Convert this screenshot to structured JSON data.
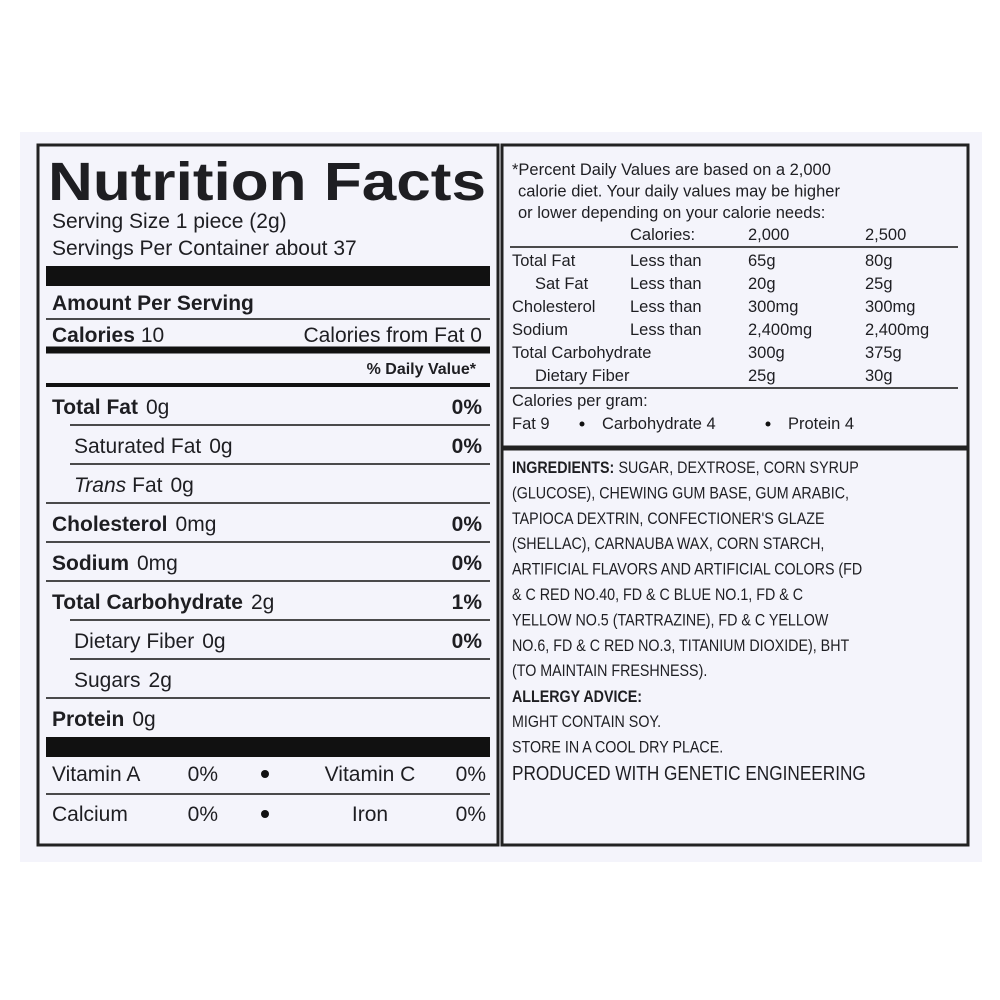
{
  "label": {
    "title": "Nutrition Facts",
    "serving_size": "Serving Size 1 piece (2g)",
    "servings_per_container": "Servings Per Container about 37",
    "amount_per_serving": "Amount Per Serving",
    "calories": {
      "label": "Calories",
      "amount": "10",
      "from_fat": "Calories from Fat 0"
    },
    "daily_value_header": "% Daily Value*",
    "nutrients": [
      {
        "name": "Total Fat",
        "amount": "0g",
        "dv": "0%",
        "bold": true,
        "indent": false
      },
      {
        "name": "Saturated Fat",
        "amount": "0g",
        "dv": "0%",
        "bold": false,
        "indent": true
      },
      {
        "name_italic": "Trans",
        "name": "Fat",
        "amount": "0g",
        "bold": false,
        "indent": true
      },
      {
        "name": "Cholesterol",
        "amount": "0mg",
        "dv": "0%",
        "bold": true,
        "indent": false
      },
      {
        "name": "Sodium",
        "amount": "0mg",
        "dv": "0%",
        "bold": true,
        "indent": false
      },
      {
        "name": "Total Carbohydrate",
        "amount": "2g",
        "dv": "1%",
        "bold": true,
        "indent": false
      },
      {
        "name": "Dietary Fiber",
        "amount": "0g",
        "dv": "0%",
        "bold": false,
        "indent": true
      },
      {
        "name": "Sugars",
        "amount": "2g",
        "bold": false,
        "indent": true
      },
      {
        "name": "Protein",
        "amount": "0g",
        "bold": true,
        "indent": false
      }
    ],
    "vitamins": [
      [
        {
          "name": "Vitamin A",
          "dv": "0%"
        },
        {
          "name": "Vitamin C",
          "dv": "0%"
        }
      ],
      [
        {
          "name": "Calcium",
          "dv": "0%"
        },
        {
          "name": "Iron",
          "dv": "0%"
        }
      ]
    ]
  },
  "footnote": {
    "lines": [
      "*Percent Daily Values are based on a 2,000",
      "calorie diet.  Your daily values may be higher",
      "or lower depending on your calorie needs:"
    ],
    "header": [
      "Calories:",
      "2,000",
      "2,500"
    ],
    "rows": [
      {
        "name": "Total Fat",
        "limit": "Less than",
        "v1": "65g",
        "v2": "80g",
        "indent": false
      },
      {
        "name": "Sat Fat",
        "limit": "Less than",
        "v1": "20g",
        "v2": "25g",
        "indent": true
      },
      {
        "name": "Cholesterol",
        "limit": "Less than",
        "v1": "300mg",
        "v2": "300mg",
        "indent": false
      },
      {
        "name": "Sodium",
        "limit": "Less than",
        "v1": "2,400mg",
        "v2": "2,400mg",
        "indent": false
      },
      {
        "name": "Total Carbohydrate",
        "v1": "300g",
        "v2": "375g",
        "indent": false
      },
      {
        "name": "Dietary Fiber",
        "v1": "25g",
        "v2": "30g",
        "indent": true
      }
    ],
    "per_gram_title": "Calories per gram:",
    "per_gram": [
      "Fat 9",
      "Carbohydrate 4",
      "Protein 4"
    ]
  },
  "ingredients": {
    "heading": "INGREDIENTS:",
    "lines": [
      "SUGAR, DEXTROSE, CORN SYRUP",
      "(GLUCOSE), CHEWING GUM BASE, GUM ARABIC,",
      "TAPIOCA DEXTRIN, CONFECTIONER'S GLAZE",
      "(SHELLAC), CARNAUBA WAX, CORN STARCH,",
      "ARTIFICIAL FLAVORS AND ARTIFICIAL COLORS (FD",
      "& C RED NO.40, FD & C BLUE NO.1, FD & C",
      "YELLOW NO.5 (TARTRAZINE), FD & C YELLOW",
      "NO.6, FD & C RED NO.3, TITANIUM DIOXIDE), BHT",
      "(TO MAINTAIN FRESHNESS)."
    ],
    "allergy_heading": "ALLERGY ADVICE:",
    "allergy_lines": [
      "MIGHT CONTAIN SOY.",
      "STORE IN A COOL DRY PLACE."
    ],
    "note": "PRODUCED WITH GENETIC ENGINEERING"
  }
}
